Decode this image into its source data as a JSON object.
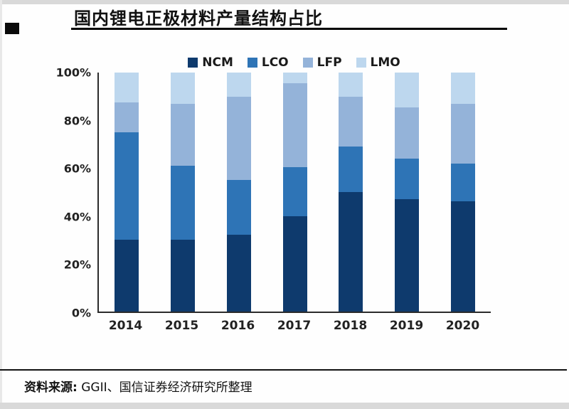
{
  "header": {
    "title": "国内锂电正极材料产量结构占比"
  },
  "chart_data": {
    "type": "bar",
    "stacked": true,
    "title": "国内锂电正极材料产量结构占比",
    "categories": [
      "2014",
      "2015",
      "2016",
      "2017",
      "2018",
      "2019",
      "2020"
    ],
    "series": [
      {
        "name": "NCM",
        "color": "#0e3a6d",
        "values": [
          30,
          30,
          32,
          40,
          50,
          47,
          46
        ]
      },
      {
        "name": "LCO",
        "color": "#2e74b6",
        "values": [
          45,
          31,
          23,
          20.5,
          19,
          17,
          16
        ]
      },
      {
        "name": "LFP",
        "color": "#94b3d9",
        "values": [
          12.5,
          26,
          35,
          35,
          21,
          21.5,
          25
        ]
      },
      {
        "name": "LMO",
        "color": "#bdd7ee",
        "values": [
          12.5,
          13,
          10,
          4.5,
          10,
          14.5,
          13
        ]
      }
    ],
    "ylim": [
      0,
      100
    ],
    "yticks": [
      "0%",
      "20%",
      "40%",
      "60%",
      "80%",
      "100%"
    ],
    "xlabel": "",
    "ylabel": "",
    "legend_position": "top",
    "grid": false
  },
  "source": {
    "label": "资料来源:",
    "text": " GGII、国信证券经济研究所整理"
  }
}
